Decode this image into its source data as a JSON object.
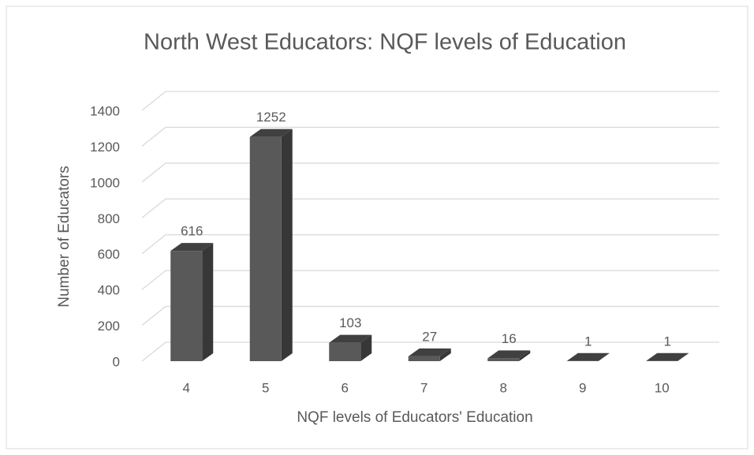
{
  "chart_data": {
    "type": "bar3d",
    "title": "North West Educators: NQF levels of Education",
    "x_label": "NQF levels of Educators' Education",
    "y_label": "Number of Educators",
    "categories": [
      "4",
      "5",
      "6",
      "7",
      "8",
      "9",
      "10"
    ],
    "values": [
      616,
      1252,
      103,
      27,
      16,
      1,
      1
    ],
    "color": "#595959",
    "ylim": [
      0,
      1400
    ],
    "yticks": [
      0,
      200,
      400,
      600,
      800,
      1000,
      1200,
      1400
    ],
    "grid": true
  }
}
